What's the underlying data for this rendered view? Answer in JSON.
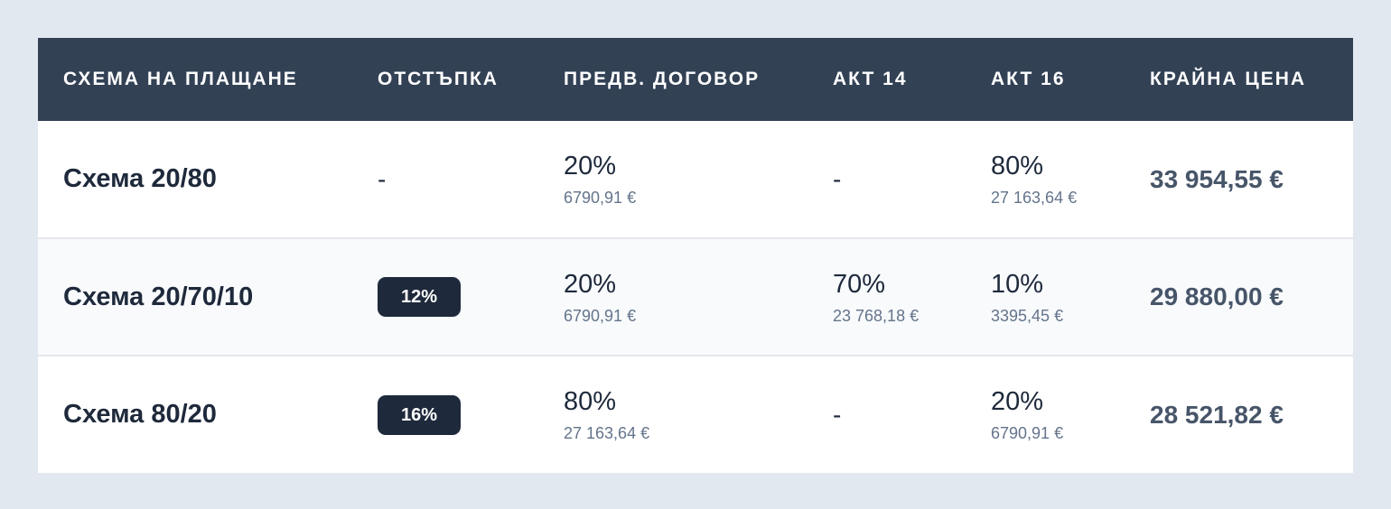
{
  "colors": {
    "header_bg": "#334155",
    "badge_bg": "#1e293b",
    "page_bg": "#e2e8f0",
    "total_text": "#475569"
  },
  "headers": [
    "СХЕМА НА ПЛАЩАНЕ",
    "ОТСТЪПКА",
    "ПРЕДВ. ДОГОВОР",
    "АКТ 14",
    "АКТ 16",
    "КРАЙНА ЦЕНА"
  ],
  "rows": [
    {
      "scheme": "Схема 20/80",
      "discount": "-",
      "prelim": {
        "pct": "20%",
        "amount": "6790,91 €"
      },
      "akt14": "-",
      "akt16": {
        "pct": "80%",
        "amount": "27 163,64 €"
      },
      "total": "33 954,55 €"
    },
    {
      "scheme": "Схема 20/70/10",
      "discount_badge": "12%",
      "prelim": {
        "pct": "20%",
        "amount": "6790,91 €"
      },
      "akt14": {
        "pct": "70%",
        "amount": "23 768,18 €"
      },
      "akt16": {
        "pct": "10%",
        "amount": "3395,45 €"
      },
      "total": "29 880,00 €"
    },
    {
      "scheme": "Схема 80/20",
      "discount_badge": "16%",
      "prelim": {
        "pct": "80%",
        "amount": "27 163,64 €"
      },
      "akt14": "-",
      "akt16": {
        "pct": "20%",
        "amount": "6790,91 €"
      },
      "total": "28 521,82 €"
    }
  ]
}
